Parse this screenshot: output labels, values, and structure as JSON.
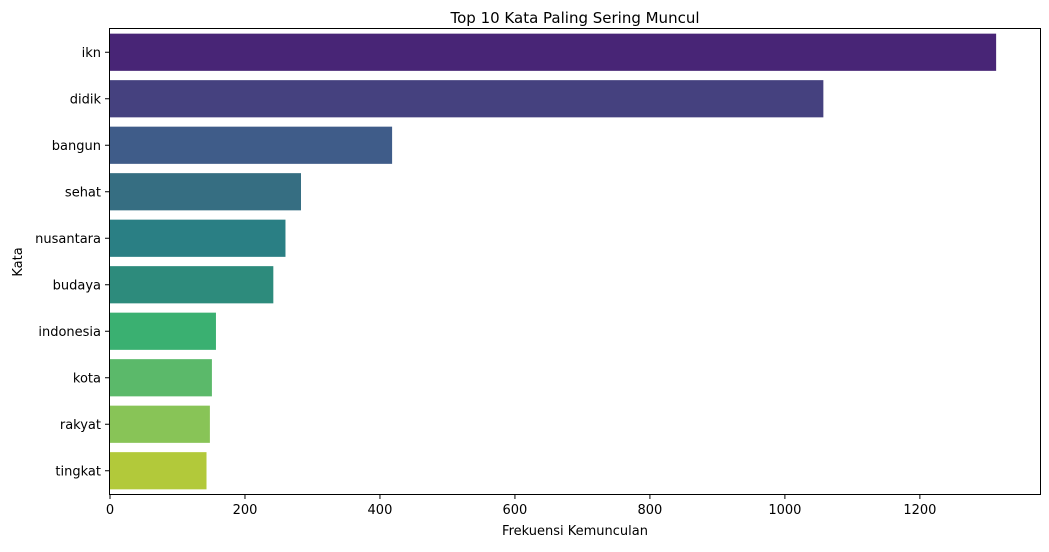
{
  "chart_data": {
    "type": "bar",
    "orientation": "horizontal",
    "title": "Top 10 Kata Paling Sering Muncul",
    "xlabel": "Frekuensi Kemunculan",
    "ylabel": "Kata",
    "categories": [
      "ikn",
      "didik",
      "bangun",
      "sehat",
      "nusantara",
      "budaya",
      "indonesia",
      "kota",
      "rakyat",
      "tingkat"
    ],
    "values": [
      1313,
      1057,
      418,
      283,
      260,
      242,
      157,
      151,
      148,
      143
    ],
    "colors": [
      "#482576",
      "#45417f",
      "#3f5c89",
      "#366e82",
      "#2a7f84",
      "#2d8b7c",
      "#3ab071",
      "#5bb96a",
      "#88c457",
      "#b2c93a"
    ],
    "xlim": [
      0,
      1378
    ],
    "xticks": [
      0,
      200,
      400,
      600,
      800,
      1000,
      1200
    ],
    "grid": false,
    "legend": "none"
  }
}
